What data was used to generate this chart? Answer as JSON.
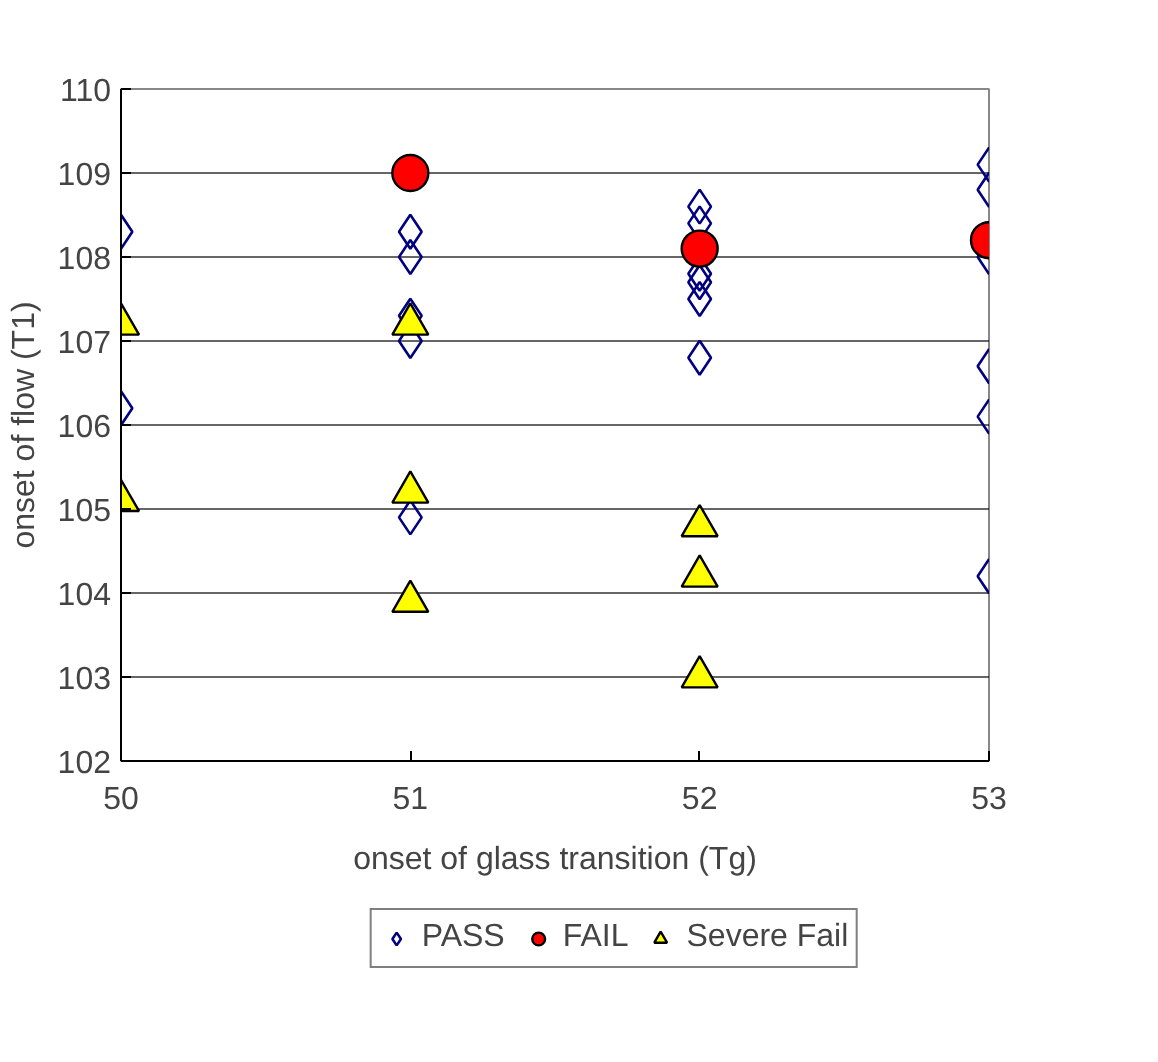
{
  "chart_data": {
    "type": "scatter",
    "xlabel": "onset of glass transition (Tg)",
    "ylabel": "onset of flow (T1)",
    "xlim": [
      50,
      53
    ],
    "xticks": [
      50,
      51,
      52,
      53
    ],
    "ylim": [
      102,
      110
    ],
    "yticks": [
      102,
      103,
      104,
      105,
      106,
      107,
      108,
      109,
      110
    ],
    "grid": "y",
    "legend": "bottom",
    "series": [
      {
        "name": "PASS",
        "color": "#000080",
        "marker": "diamond",
        "x": [
          50,
          50,
          51,
          51,
          51,
          51,
          51,
          52,
          52,
          52,
          52,
          52,
          52,
          53,
          53,
          53,
          53,
          53,
          53
        ],
        "values": [
          108.3,
          106.2,
          108.3,
          108.0,
          107.3,
          107.0,
          104.9,
          108.6,
          108.4,
          107.8,
          107.7,
          107.5,
          106.8,
          109.1,
          108.8,
          108.0,
          106.7,
          106.1,
          104.2
        ]
      },
      {
        "name": "FAIL",
        "color": "#ff0000",
        "marker": "circle",
        "x": [
          51,
          52,
          53
        ],
        "values": [
          109.0,
          108.1,
          108.2
        ]
      },
      {
        "name": "Severe Fail",
        "color": "#ffff00",
        "marker": "triangle",
        "x": [
          50,
          50,
          51,
          51,
          51,
          52,
          52,
          52
        ],
        "values": [
          107.2,
          105.1,
          107.2,
          105.2,
          103.9,
          104.8,
          104.2,
          103.0
        ]
      }
    ]
  }
}
